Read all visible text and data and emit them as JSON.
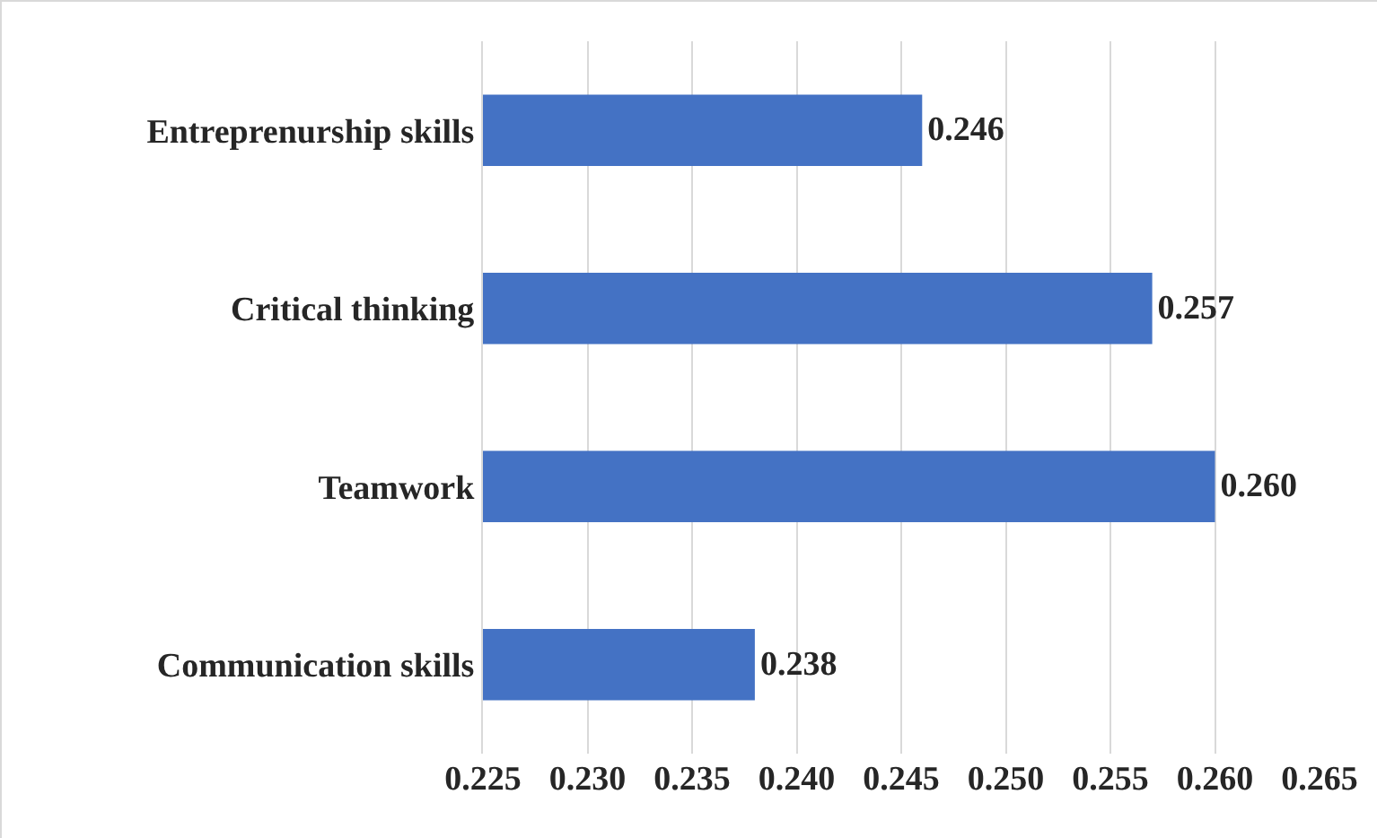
{
  "chart_data": {
    "type": "bar",
    "orientation": "horizontal",
    "categories": [
      "Entreprenurship skills",
      "Critical thinking",
      "Teamwork",
      "Communication skills"
    ],
    "values": [
      0.246,
      0.257,
      0.26,
      0.238
    ],
    "value_labels": [
      "0.246",
      "0.257",
      "0.260",
      "0.238"
    ],
    "color": "#4472c4",
    "xlim": [
      0.225,
      0.265
    ],
    "xticks": [
      0.225,
      {
        "value": 0.23,
        "label": "0.230"
      },
      0.235,
      {
        "value": 0.24,
        "label": "0.240"
      },
      0.245,
      {
        "value": 0.25,
        "label": "0.250"
      },
      0.255,
      {
        "value": 0.26,
        "label": "0.260"
      },
      0.265
    ],
    "grid": "x"
  }
}
